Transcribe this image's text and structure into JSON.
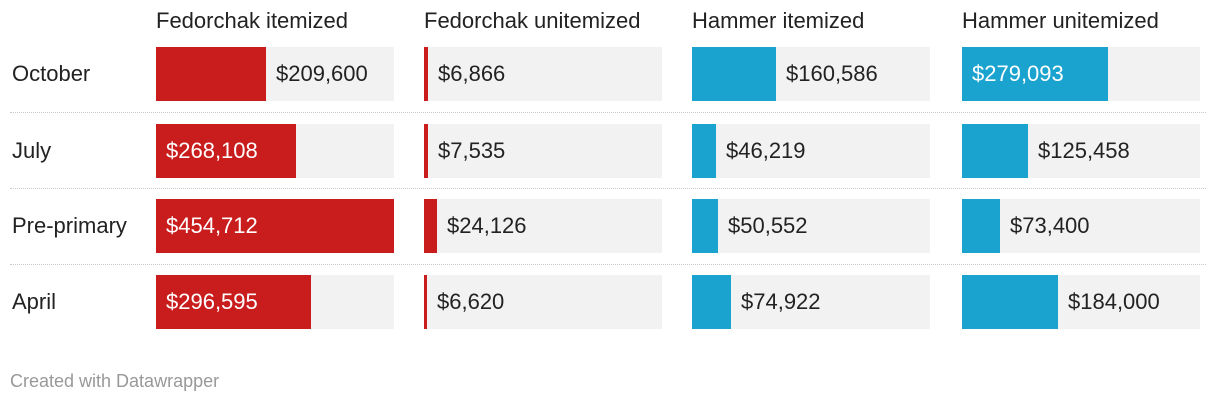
{
  "chart_data": {
    "type": "bar",
    "categories": [
      "October",
      "July",
      "Pre-primary",
      "April"
    ],
    "series": [
      {
        "name": "Fedorchak itemized",
        "values": [
          209600,
          268108,
          454712,
          296595
        ],
        "labels": [
          "$209,600",
          "$268,108",
          "$454,712",
          "$296,595"
        ],
        "color": "#c91d1d"
      },
      {
        "name": "Fedorchak unitemized",
        "values": [
          6866,
          7535,
          24126,
          6620
        ],
        "labels": [
          "$6,866",
          "$7,535",
          "$24,126",
          "$6,620"
        ],
        "color": "#c91d1d"
      },
      {
        "name": "Hammer itemized",
        "values": [
          160586,
          46219,
          50552,
          74922
        ],
        "labels": [
          "$160,586",
          "$46,219",
          "$50,552",
          "$74,922"
        ],
        "color": "#1aa3cf"
      },
      {
        "name": "Hammer unitemized",
        "values": [
          279093,
          125458,
          73400,
          184000
        ],
        "labels": [
          "$279,093",
          "$125,458",
          "$73,400",
          "$184,000"
        ],
        "color": "#1aa3cf"
      }
    ],
    "xlim": [
      0,
      454712
    ]
  },
  "colors": {
    "fedorchak": "#c91d1d",
    "hammer": "#1aa3cf",
    "track": "#f2f2f2"
  },
  "footer": "Created with Datawrapper"
}
